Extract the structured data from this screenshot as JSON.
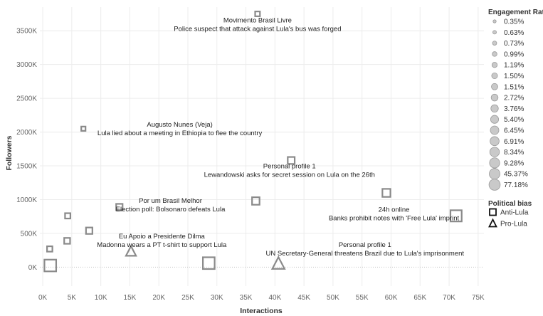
{
  "chart_data": {
    "type": "scatter",
    "title": "",
    "xlabel": "Interactions",
    "ylabel": "Followers",
    "xlim": [
      -500,
      76000
    ],
    "ylim": [
      -280000,
      3850000
    ],
    "xticks": [
      0,
      5000,
      10000,
      15000,
      20000,
      25000,
      30000,
      35000,
      40000,
      45000,
      50000,
      55000,
      60000,
      65000,
      70000,
      75000
    ],
    "xtick_labels": [
      "0K",
      "5K",
      "10K",
      "15K",
      "20K",
      "25K",
      "30K",
      "35K",
      "40K",
      "45K",
      "50K",
      "55K",
      "60K",
      "65K",
      "70K",
      "75K"
    ],
    "yticks": [
      0,
      500000,
      1000000,
      1500000,
      2000000,
      2500000,
      3000000,
      3500000
    ],
    "ytick_labels": [
      "0K",
      "500K",
      "1000K",
      "1500K",
      "2000K",
      "2500K",
      "3000K",
      "3500K"
    ],
    "grid": true,
    "legend_position": "right",
    "points": [
      {
        "x": 37000,
        "y": 3750000,
        "rate": "0.63%",
        "bias": "Anti-Lula"
      },
      {
        "x": 7000,
        "y": 2050000,
        "rate": "0.35%",
        "bias": "Anti-Lula"
      },
      {
        "x": 42800,
        "y": 1580000,
        "rate": "1.50%",
        "bias": "Anti-Lula"
      },
      {
        "x": 59200,
        "y": 1100000,
        "rate": "2.72%",
        "bias": "Anti-Lula"
      },
      {
        "x": 36700,
        "y": 980000,
        "rate": "1.51%",
        "bias": "Anti-Lula"
      },
      {
        "x": 13200,
        "y": 890000,
        "rate": "1.19%",
        "bias": "Anti-Lula"
      },
      {
        "x": 4300,
        "y": 760000,
        "rate": "0.73%",
        "bias": "Anti-Lula"
      },
      {
        "x": 8000,
        "y": 540000,
        "rate": "1.19%",
        "bias": "Anti-Lula"
      },
      {
        "x": 4200,
        "y": 390000,
        "rate": "0.99%",
        "bias": "Anti-Lula"
      },
      {
        "x": 1200,
        "y": 270000,
        "rate": "0.73%",
        "bias": "Anti-Lula"
      },
      {
        "x": 71200,
        "y": 760000,
        "rate": "9.28%",
        "bias": "Anti-Lula"
      },
      {
        "x": 1300,
        "y": 25000,
        "rate": "45.37%",
        "bias": "Anti-Lula"
      },
      {
        "x": 28600,
        "y": 60000,
        "rate": "45.37%",
        "bias": "Anti-Lula"
      },
      {
        "x": 15200,
        "y": 230000,
        "rate": "6.45%",
        "bias": "Pro-Lula"
      },
      {
        "x": 40600,
        "y": 50000,
        "rate": "45.37%",
        "bias": "Pro-Lula"
      }
    ],
    "annotations": [
      {
        "name": "Movimento Brasil Livre",
        "text": "Police suspect that attack against Lula's bus was forged",
        "ax": 37000,
        "ay": 3600000
      },
      {
        "name": "Augusto Nunes (Veja)",
        "text": "Lula lied about a meeting in Ethiopia to flee the country",
        "ax": 23600,
        "ay": 2060000
      },
      {
        "name": "Personal profile 1",
        "text": "Lewandowski asks for secret session on Lula on the 26th",
        "ax": 42500,
        "ay": 1440000
      },
      {
        "name": "Por um Brasil Melhor",
        "text": "Election poll: Bolsonaro defeats Lula",
        "ax": 22000,
        "ay": 930000
      },
      {
        "name": "24h online",
        "text": "Banks prohibit notes with 'Free Lula' imprint",
        "ax": 60500,
        "ay": 800000
      },
      {
        "name": "Eu Apoio a Presidente Dilma",
        "text": "Madonna wears a PT t-shirt to support Lula",
        "ax": 20500,
        "ay": 405000
      },
      {
        "name": "Personal profile 1",
        "text": "UN Secretary-General threatens Brazil due to Lula's imprisonment",
        "ax": 55500,
        "ay": 280000
      }
    ]
  },
  "legend": {
    "engagement_title": "Engagement Rate",
    "engagement_items": [
      "0.35%",
      "0.63%",
      "0.73%",
      "0.99%",
      "1.19%",
      "1.50%",
      "1.51%",
      "2.72%",
      "3.76%",
      "5.40%",
      "6.45%",
      "6.91%",
      "8.34%",
      "9.28%",
      "45.37%",
      "77.18%"
    ],
    "bias_title": "Political bias",
    "bias_items": [
      "Anti-Lula",
      "Pro-Lula"
    ]
  },
  "colors": {
    "marker": "#8a8a8a",
    "legend_fill": "#c9c9c9",
    "legend_stroke": "#9a9a9a",
    "grid": "#ececec"
  }
}
